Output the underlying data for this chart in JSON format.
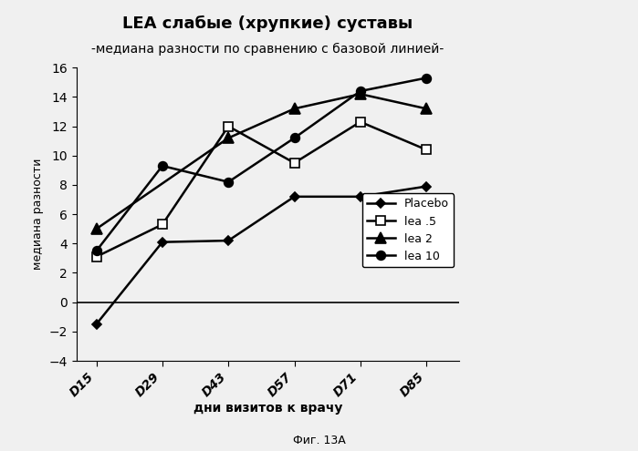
{
  "title1": "LEA слабые (хрупкие) суставы",
  "title2": "-медиана разности по сравнению с базовой линией-",
  "xlabel": "дни визитов к врачу",
  "ylabel": "медиана разности",
  "caption": "Фиг. 13А",
  "x_labels": [
    "D15",
    "D29",
    "D43",
    "D57",
    "D71",
    "D85"
  ],
  "x_values": [
    0,
    1,
    2,
    3,
    4,
    5
  ],
  "series": {
    "Placebo": {
      "values": [
        -1.5,
        4.1,
        4.2,
        7.2,
        7.2,
        7.9
      ],
      "marker": "D",
      "color": "#000000",
      "linestyle": "-",
      "markersize": 5,
      "markerfacecolor": "#000000"
    },
    "lea .5": {
      "values": [
        3.1,
        5.3,
        12.0,
        9.5,
        12.3,
        10.4
      ],
      "marker": "s",
      "color": "#000000",
      "linestyle": "-",
      "markersize": 7,
      "markerfacecolor": "white"
    },
    "lea 2": {
      "values": [
        5.0,
        null,
        11.2,
        13.2,
        14.2,
        13.2
      ],
      "marker": "^",
      "color": "#000000",
      "linestyle": "-",
      "markersize": 8,
      "markerfacecolor": "#000000"
    },
    "lea 10": {
      "values": [
        3.5,
        9.3,
        8.2,
        11.2,
        14.4,
        15.3
      ],
      "marker": "o",
      "color": "#000000",
      "linestyle": "-",
      "markersize": 7,
      "markerfacecolor": "#000000"
    }
  },
  "ylim": [
    -4,
    16
  ],
  "yticks": [
    -4,
    -2,
    0,
    2,
    4,
    6,
    8,
    10,
    12,
    14,
    16
  ],
  "background_color": "#f0f0f0"
}
